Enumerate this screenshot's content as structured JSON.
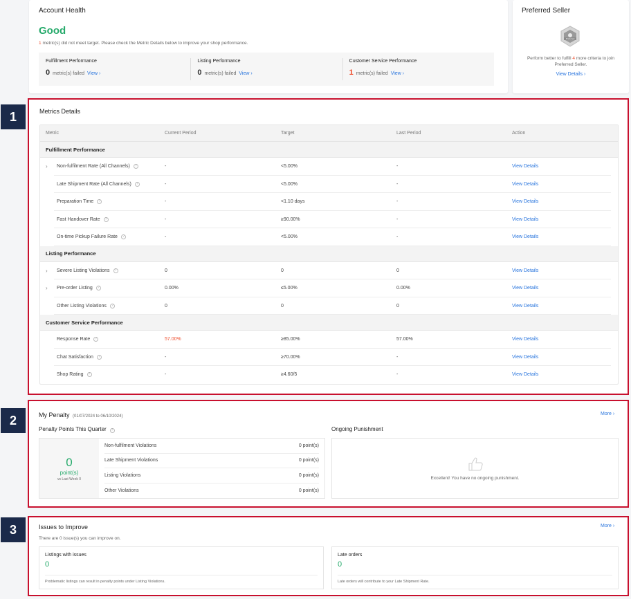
{
  "account_health": {
    "title": "Account Health",
    "status": "Good",
    "note_count": "1",
    "note_text": "metric(s) did not meet target. Please check the Metric Details below to improve your shop performance.",
    "columns": [
      {
        "title": "Fulfillment Performance",
        "value": "0",
        "suffix": "metric(s) failed",
        "link": "View ›",
        "status": "ok"
      },
      {
        "title": "Listing Performance",
        "value": "0",
        "suffix": "metric(s) failed",
        "link": "View ›",
        "status": "ok"
      },
      {
        "title": "Customer Service Performance",
        "value": "1",
        "suffix": "metric(s) failed",
        "link": "View ›",
        "status": "fail"
      }
    ]
  },
  "preferred_seller": {
    "title": "Preferred Seller",
    "badge_text": "Preferred",
    "text_before": "Perform better to fulfill ",
    "count": "4",
    "text_after": " more criteria to join Preferred Seller.",
    "link": "View Details ›"
  },
  "badges": [
    "1",
    "2",
    "3"
  ],
  "metrics": {
    "title": "Metrics Details",
    "headers": [
      "Metric",
      "Current Period",
      "Target",
      "Last Period",
      "Action"
    ],
    "sections": [
      {
        "name": "Fulfillment Performance",
        "rows": [
          {
            "name": "Non-fulfilment Rate (All Channels)",
            "expand": true,
            "current": "-",
            "target": "<5.00%",
            "last": "-",
            "action": "View Details"
          },
          {
            "name": "Late Shipment Rate (All Channels)",
            "expand": false,
            "current": "-",
            "target": "<5.00%",
            "last": "-",
            "action": "View Details"
          },
          {
            "name": "Preparation Time",
            "expand": false,
            "current": "-",
            "target": "<1.10 days",
            "last": "-",
            "action": "View Details"
          },
          {
            "name": "Fast Handover Rate",
            "expand": false,
            "current": "-",
            "target": "≥90.00%",
            "last": "-",
            "action": "View Details"
          },
          {
            "name": "On-time Pickup Failure Rate",
            "expand": false,
            "current": "-",
            "target": "<5.00%",
            "last": "-",
            "action": "View Details"
          }
        ]
      },
      {
        "name": "Listing Performance",
        "rows": [
          {
            "name": "Severe Listing Violations",
            "expand": true,
            "current": "0",
            "target": "0",
            "last": "0",
            "action": "View Details"
          },
          {
            "name": "Pre-order Listing",
            "expand": true,
            "current": "0.00%",
            "target": "≤5.00%",
            "last": "0.00%",
            "action": "View Details"
          },
          {
            "name": "Other Listing Violations",
            "expand": false,
            "current": "0",
            "target": "0",
            "last": "0",
            "action": "View Details"
          }
        ]
      },
      {
        "name": "Customer Service Performance",
        "rows": [
          {
            "name": "Response Rate",
            "expand": false,
            "current": "57.00%",
            "current_fail": true,
            "target": "≥85.00%",
            "last": "57.00%",
            "action": "View Details"
          },
          {
            "name": "Chat Satisfaction",
            "expand": false,
            "current": "-",
            "target": "≥70.00%",
            "last": "-",
            "action": "View Details"
          },
          {
            "name": "Shop Rating",
            "expand": false,
            "current": "-",
            "target": "≥4.60/5",
            "last": "-",
            "action": "View Details"
          }
        ]
      }
    ]
  },
  "penalty": {
    "title": "My Penalty",
    "period": "(01/07/2024 to 06/10/2024)",
    "more": "More ›",
    "quarter_title": "Penalty Points This Quarter",
    "points": "0",
    "points_unit": "point(s)",
    "vs_text": "vs Last Week 0",
    "rows": [
      {
        "name": "Non-fulfilment Violations",
        "value": "0 point(s)"
      },
      {
        "name": "Late Shipment Violations",
        "value": "0 point(s)"
      },
      {
        "name": "Listing Violations",
        "value": "0 point(s)"
      },
      {
        "name": "Other Violations",
        "value": "0 point(s)"
      }
    ],
    "ongoing_title": "Ongoing Punishment",
    "ongoing_text": "Excellent! You have no ongoing punishment."
  },
  "issues": {
    "title": "Issues to Improve",
    "more": "More ›",
    "subtitle": "There are 0 issue(s) you can improve on.",
    "cards": [
      {
        "title": "Listings with issues",
        "value": "0",
        "note": "Problematic listings can result in penalty points under Listing Violations."
      },
      {
        "title": "Late orders",
        "value": "0",
        "note": "Late orders will contribute to your Late Shipment Rate."
      }
    ]
  }
}
